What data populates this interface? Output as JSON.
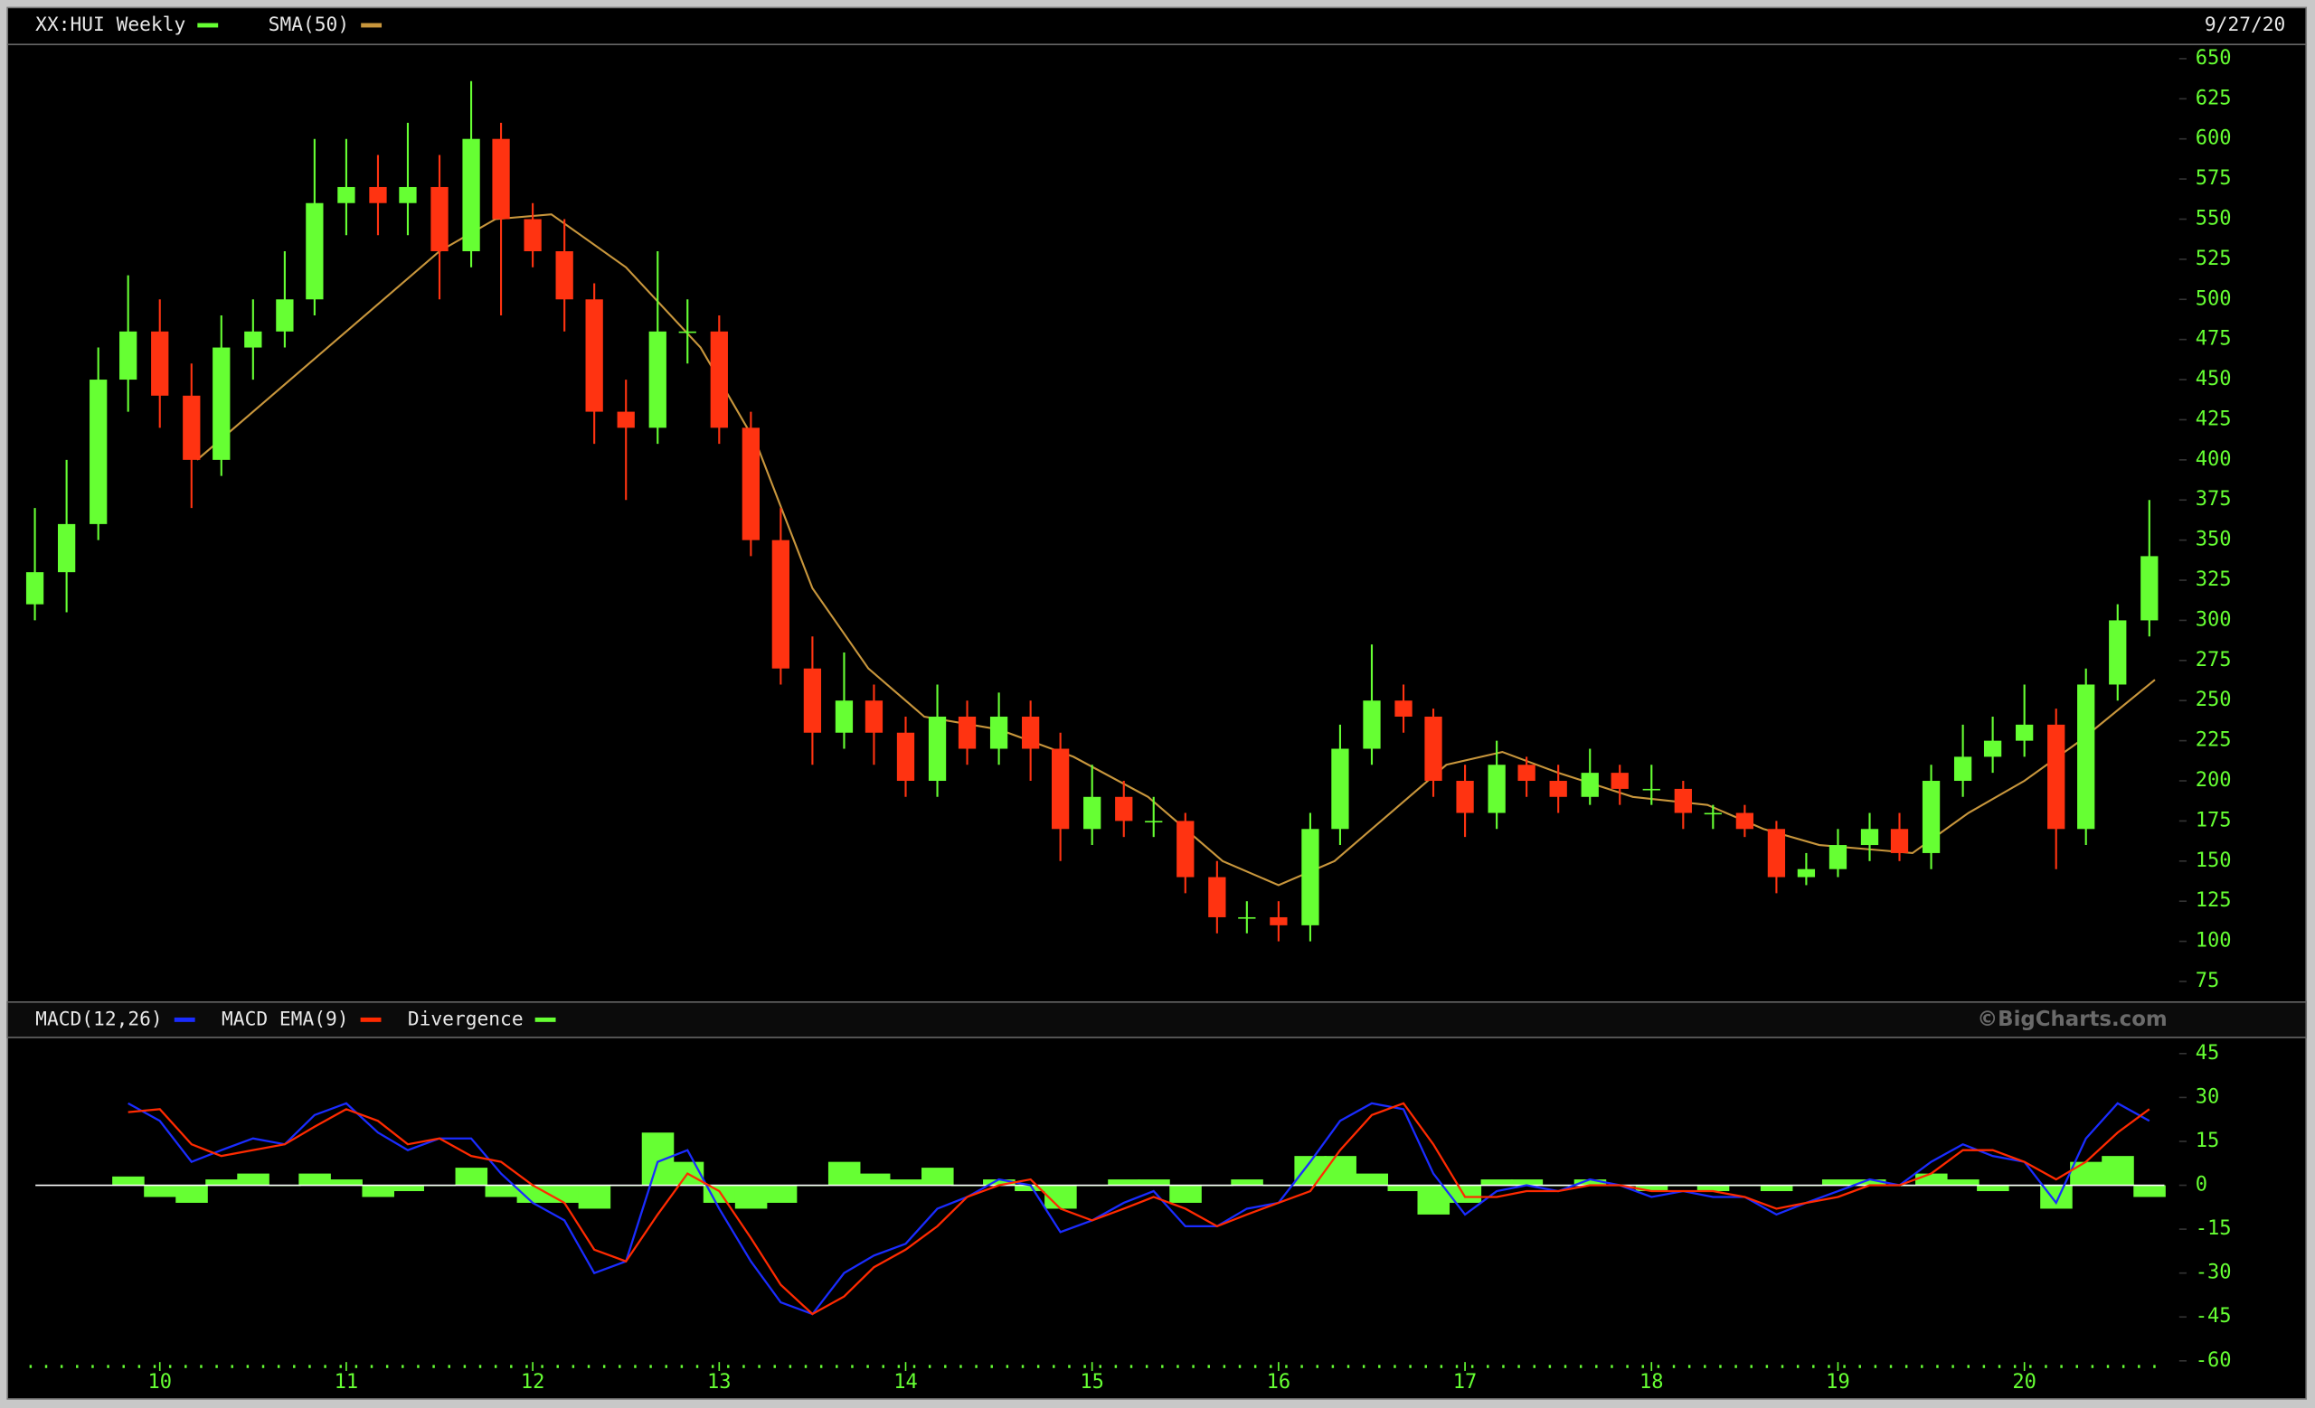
{
  "chart_data": [
    {
      "type": "candlestick",
      "name": "XX:HUI Weekly",
      "date": "9/27/20",
      "up_color": "#66ff33",
      "down_color": "#ff3311",
      "x": [
        9.33,
        9.5,
        9.67,
        9.83,
        10,
        10.17,
        10.33,
        10.5,
        10.67,
        10.83,
        11,
        11.17,
        11.33,
        11.5,
        11.67,
        11.83,
        12,
        12.17,
        12.33,
        12.5,
        12.67,
        12.83,
        13,
        13.17,
        13.33,
        13.5,
        13.67,
        13.83,
        14,
        14.17,
        14.33,
        14.5,
        14.67,
        14.83,
        15,
        15.17,
        15.33,
        15.5,
        15.67,
        15.83,
        16,
        16.17,
        16.33,
        16.5,
        16.67,
        16.83,
        17,
        17.17,
        17.33,
        17.5,
        17.67,
        17.83,
        18,
        18.17,
        18.33,
        18.5,
        18.67,
        18.83,
        19,
        19.17,
        19.33,
        19.5,
        19.67,
        19.83,
        20,
        20.17,
        20.33,
        20.5,
        20.67
      ],
      "open": [
        310,
        330,
        360,
        450,
        480,
        440,
        400,
        470,
        480,
        500,
        560,
        570,
        560,
        570,
        530,
        600,
        550,
        530,
        500,
        430,
        420,
        480,
        480,
        420,
        350,
        270,
        230,
        250,
        230,
        200,
        240,
        220,
        240,
        220,
        170,
        190,
        175,
        175,
        140,
        115,
        115,
        110,
        170,
        220,
        250,
        240,
        200,
        180,
        210,
        200,
        190,
        205,
        195,
        195,
        180,
        180,
        170,
        140,
        145,
        160,
        170,
        155,
        200,
        215,
        225,
        235,
        170,
        260,
        300
      ],
      "high": [
        370,
        400,
        470,
        515,
        500,
        460,
        490,
        500,
        530,
        600,
        600,
        590,
        610,
        590,
        636,
        610,
        560,
        550,
        510,
        450,
        530,
        500,
        490,
        430,
        370,
        290,
        280,
        260,
        240,
        260,
        250,
        255,
        250,
        230,
        210,
        200,
        190,
        180,
        150,
        125,
        125,
        180,
        235,
        285,
        260,
        245,
        210,
        225,
        215,
        210,
        220,
        210,
        210,
        200,
        185,
        185,
        175,
        155,
        170,
        180,
        180,
        210,
        235,
        240,
        260,
        245,
        270,
        310,
        375
      ],
      "low": [
        300,
        305,
        350,
        430,
        420,
        370,
        390,
        450,
        470,
        490,
        540,
        540,
        540,
        500,
        520,
        490,
        520,
        480,
        410,
        375,
        410,
        460,
        410,
        340,
        260,
        210,
        220,
        210,
        190,
        190,
        210,
        210,
        200,
        150,
        160,
        165,
        165,
        130,
        105,
        105,
        100,
        100,
        160,
        210,
        230,
        190,
        165,
        170,
        190,
        180,
        185,
        185,
        185,
        170,
        170,
        165,
        130,
        135,
        140,
        150,
        150,
        145,
        190,
        205,
        215,
        145,
        160,
        250,
        290
      ],
      "close": [
        330,
        360,
        450,
        480,
        440,
        400,
        470,
        480,
        500,
        560,
        570,
        560,
        570,
        530,
        600,
        550,
        530,
        500,
        430,
        420,
        480,
        480,
        420,
        350,
        270,
        230,
        250,
        230,
        200,
        240,
        220,
        240,
        220,
        170,
        190,
        175,
        175,
        140,
        115,
        115,
        110,
        170,
        220,
        250,
        240,
        200,
        180,
        210,
        200,
        190,
        205,
        195,
        195,
        180,
        180,
        170,
        140,
        145,
        160,
        170,
        155,
        200,
        215,
        225,
        235,
        170,
        260,
        300,
        340
      ],
      "overlays": [
        {
          "name": "SMA(50)",
          "color": "#c8963c",
          "x": [
            10.2,
            10.5,
            11,
            11.5,
            11.8,
            12.1,
            12.5,
            12.9,
            13.2,
            13.5,
            13.8,
            14.1,
            14.5,
            14.9,
            15.3,
            15.7,
            16,
            16.3,
            16.6,
            16.9,
            17.2,
            17.5,
            17.9,
            18.3,
            18.6,
            18.9,
            19.2,
            19.4,
            19.7,
            20,
            20.3,
            20.7
          ],
          "values": [
            400,
            430,
            480,
            530,
            550,
            553,
            520,
            470,
            410,
            320,
            270,
            240,
            232,
            215,
            190,
            150,
            135,
            150,
            180,
            210,
            218,
            205,
            190,
            185,
            170,
            160,
            157,
            155,
            180,
            200,
            225,
            263
          ]
        }
      ],
      "xlim": [
        9.23,
        20.83
      ],
      "ylim": [
        64,
        657
      ],
      "yticks": [
        75,
        100,
        125,
        150,
        175,
        200,
        225,
        250,
        275,
        300,
        325,
        350,
        375,
        400,
        425,
        450,
        475,
        500,
        525,
        550,
        575,
        600,
        625,
        650
      ]
    },
    {
      "type": "macd",
      "watermark": "©BigCharts.com",
      "x": [
        9.83,
        10,
        10.17,
        10.33,
        10.5,
        10.67,
        10.83,
        11,
        11.17,
        11.33,
        11.5,
        11.67,
        11.83,
        12,
        12.17,
        12.33,
        12.5,
        12.67,
        12.83,
        13,
        13.17,
        13.33,
        13.5,
        13.67,
        13.83,
        14,
        14.17,
        14.33,
        14.5,
        14.67,
        14.83,
        15,
        15.17,
        15.33,
        15.5,
        15.67,
        15.83,
        16,
        16.17,
        16.33,
        16.5,
        16.67,
        16.83,
        17,
        17.17,
        17.33,
        17.5,
        17.67,
        17.83,
        18,
        18.17,
        18.33,
        18.5,
        18.67,
        18.83,
        19,
        19.17,
        19.33,
        19.5,
        19.67,
        19.83,
        20,
        20.17,
        20.33,
        20.5,
        20.67
      ],
      "series": [
        {
          "name": "MACD(12,26)",
          "color": "#1a2cff",
          "style": "line",
          "values": [
            28,
            22,
            8,
            12,
            16,
            14,
            24,
            28,
            18,
            12,
            16,
            16,
            4,
            -6,
            -12,
            -30,
            -26,
            8,
            12,
            -8,
            -26,
            -40,
            -44,
            -30,
            -24,
            -20,
            -8,
            -4,
            2,
            0,
            -16,
            -12,
            -6,
            -2,
            -14,
            -14,
            -8,
            -6,
            8,
            22,
            28,
            26,
            4,
            -10,
            -2,
            0,
            -2,
            2,
            0,
            -4,
            -2,
            -4,
            -4,
            -10,
            -6,
            -2,
            2,
            0,
            8,
            14,
            10,
            8,
            -6,
            16,
            28,
            22
          ]
        },
        {
          "name": "MACD EMA(9)",
          "color": "#ff2a00",
          "style": "line",
          "values": [
            25,
            26,
            14,
            10,
            12,
            14,
            20,
            26,
            22,
            14,
            16,
            10,
            8,
            0,
            -6,
            -22,
            -26,
            -10,
            4,
            -2,
            -18,
            -34,
            -44,
            -38,
            -28,
            -22,
            -14,
            -4,
            0,
            2,
            -8,
            -12,
            -8,
            -4,
            -8,
            -14,
            -10,
            -6,
            -2,
            12,
            24,
            28,
            14,
            -4,
            -4,
            -2,
            -2,
            0,
            0,
            -2,
            -2,
            -2,
            -4,
            -8,
            -6,
            -4,
            0,
            0,
            4,
            12,
            12,
            8,
            2,
            8,
            18,
            26
          ]
        },
        {
          "name": "Divergence",
          "color": "#66ff33",
          "style": "bar",
          "values": [
            3,
            -4,
            -6,
            2,
            4,
            0,
            4,
            2,
            -4,
            -2,
            0,
            6,
            -4,
            -6,
            -6,
            -8,
            0,
            18,
            8,
            -6,
            -8,
            -6,
            0,
            8,
            4,
            2,
            6,
            0,
            2,
            -2,
            -8,
            0,
            2,
            2,
            -6,
            0,
            2,
            0,
            10,
            10,
            4,
            -2,
            -10,
            -6,
            2,
            2,
            0,
            2,
            0,
            -2,
            0,
            -2,
            0,
            -2,
            0,
            2,
            2,
            0,
            4,
            2,
            -2,
            0,
            -8,
            8,
            10,
            -4
          ]
        }
      ],
      "xlim": [
        9.23,
        20.83
      ],
      "ylim": [
        -71,
        49.5
      ],
      "yticks": [
        -60,
        -45,
        -30,
        -15,
        0,
        15,
        30,
        45
      ],
      "xticks": [
        10,
        11,
        12,
        13,
        14,
        15,
        16,
        17,
        18,
        19,
        20
      ]
    }
  ]
}
